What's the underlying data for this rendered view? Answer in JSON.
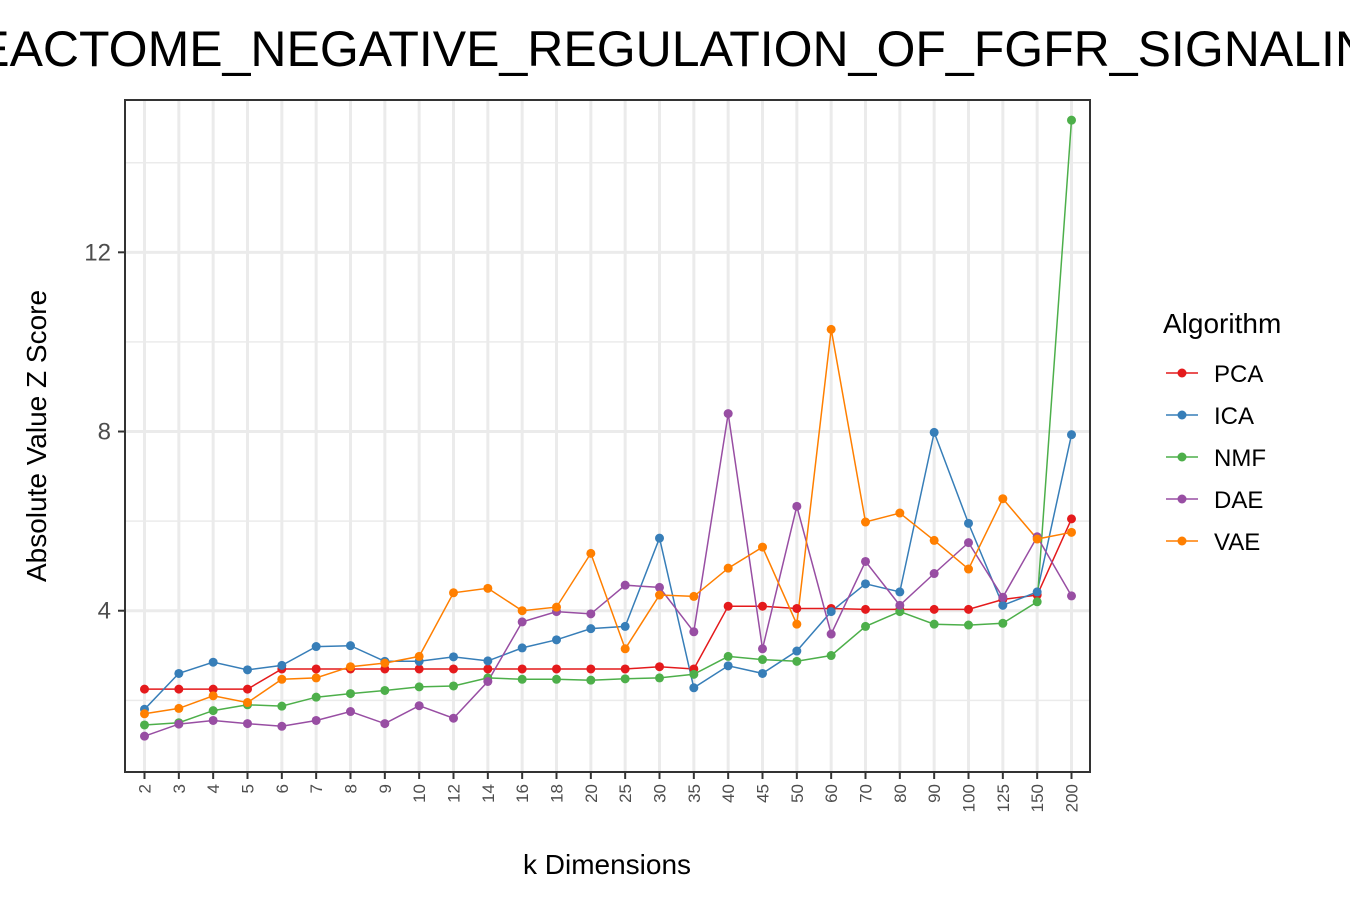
{
  "chart_data": {
    "type": "line",
    "title": "REACTOME_NEGATIVE_REGULATION_OF_FGFR_SIGNALING",
    "xlabel": "k Dimensions",
    "ylabel": "Absolute Value Z Score",
    "categories": [
      "2",
      "3",
      "4",
      "5",
      "6",
      "7",
      "8",
      "9",
      "10",
      "12",
      "14",
      "16",
      "18",
      "20",
      "25",
      "30",
      "35",
      "40",
      "45",
      "50",
      "60",
      "70",
      "80",
      "90",
      "100",
      "125",
      "150",
      "200"
    ],
    "ylim": [
      0.4,
      15.4
    ],
    "yticks": [
      4,
      8,
      12
    ],
    "grid": true,
    "legend": {
      "title": "Algorithm",
      "position": "right"
    },
    "series": [
      {
        "name": "PCA",
        "color": "#e41a1c",
        "values": [
          2.25,
          2.25,
          2.25,
          2.25,
          2.7,
          2.7,
          2.7,
          2.7,
          2.7,
          2.7,
          2.7,
          2.7,
          2.7,
          2.7,
          2.7,
          2.75,
          2.7,
          4.1,
          4.1,
          4.05,
          4.05,
          4.03,
          4.03,
          4.03,
          4.03,
          4.25,
          4.35,
          6.05
        ]
      },
      {
        "name": "ICA",
        "color": "#377eb8",
        "values": [
          1.8,
          2.6,
          2.85,
          2.68,
          2.78,
          3.2,
          3.22,
          2.87,
          2.87,
          2.97,
          2.88,
          3.17,
          3.35,
          3.6,
          3.65,
          5.62,
          2.28,
          2.77,
          2.6,
          3.1,
          3.98,
          4.6,
          4.42,
          7.98,
          5.95,
          4.12,
          4.42,
          7.93
        ]
      },
      {
        "name": "NMF",
        "color": "#4daf4a",
        "values": [
          1.45,
          1.5,
          1.77,
          1.9,
          1.87,
          2.07,
          2.15,
          2.22,
          2.3,
          2.32,
          2.5,
          2.47,
          2.47,
          2.45,
          2.48,
          2.5,
          2.58,
          2.98,
          2.91,
          2.87,
          3.0,
          3.65,
          3.98,
          3.7,
          3.68,
          3.72,
          4.2,
          14.95
        ]
      },
      {
        "name": "DAE",
        "color": "#984ea3",
        "values": [
          1.2,
          1.47,
          1.55,
          1.48,
          1.42,
          1.55,
          1.75,
          1.48,
          1.88,
          1.6,
          2.42,
          3.75,
          3.98,
          3.93,
          4.57,
          4.52,
          3.53,
          8.4,
          3.15,
          6.33,
          3.48,
          5.1,
          4.12,
          4.83,
          5.52,
          4.3,
          5.65,
          4.33
        ]
      },
      {
        "name": "VAE",
        "color": "#ff7f00",
        "values": [
          1.7,
          1.82,
          2.1,
          1.95,
          2.47,
          2.5,
          2.75,
          2.83,
          2.98,
          4.4,
          4.5,
          4.0,
          4.08,
          5.28,
          3.15,
          4.35,
          4.32,
          4.95,
          5.42,
          3.7,
          10.28,
          5.98,
          6.18,
          5.57,
          4.93,
          6.5,
          5.6,
          5.75
        ]
      }
    ]
  }
}
